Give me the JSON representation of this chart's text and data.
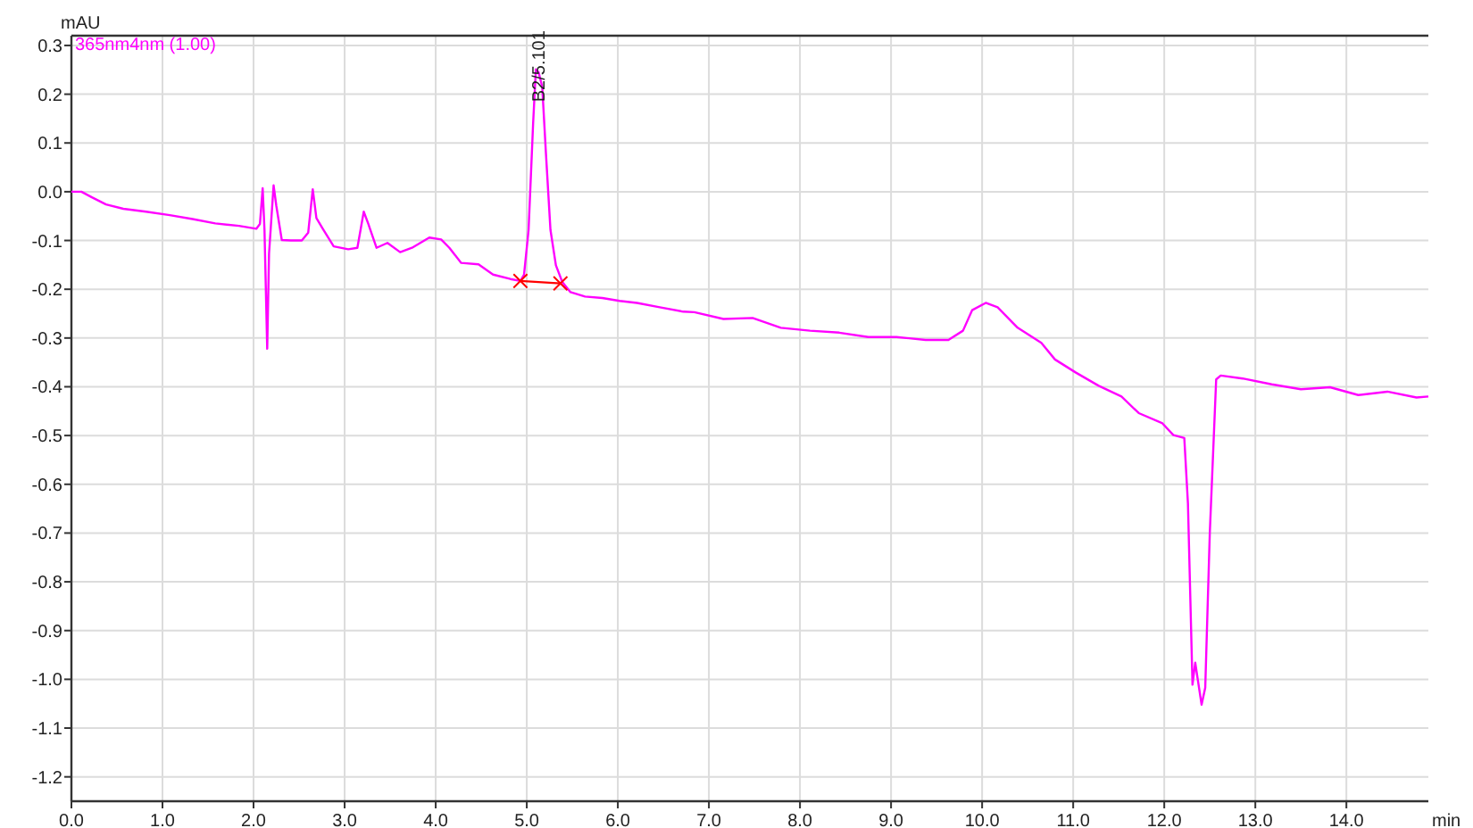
{
  "chart_data": {
    "type": "line",
    "xlabel": "min",
    "ylabel": "mAU",
    "xlim": [
      0,
      14.9
    ],
    "ylim": [
      -1.25,
      0.32
    ],
    "xticks": [
      {
        "value": 0,
        "label": "0.0"
      },
      {
        "value": 1,
        "label": "1.0"
      },
      {
        "value": 2,
        "label": "2.0"
      },
      {
        "value": 3,
        "label": "3.0"
      },
      {
        "value": 4,
        "label": "4.0"
      },
      {
        "value": 5,
        "label": "5.0"
      },
      {
        "value": 6,
        "label": "6.0"
      },
      {
        "value": 7,
        "label": "7.0"
      },
      {
        "value": 8,
        "label": "8.0"
      },
      {
        "value": 9,
        "label": "9.0"
      },
      {
        "value": 10,
        "label": "10.0"
      },
      {
        "value": 11,
        "label": "11.0"
      },
      {
        "value": 12,
        "label": "12.0"
      },
      {
        "value": 13,
        "label": "13.0"
      },
      {
        "value": 14,
        "label": "14.0"
      }
    ],
    "yticks": [
      0.3,
      0.2,
      0.1,
      {
        "value": 0,
        "label": "0.0"
      },
      -0.1,
      -0.2,
      -0.3,
      -0.4,
      -0.5,
      -0.6,
      -0.7,
      -0.8,
      -0.9,
      {
        "value": -1,
        "label": "-1.0"
      },
      -1.1,
      -1.2
    ],
    "grid": true,
    "legend": "top left",
    "annotations": [
      {
        "text": "B2/5.101",
        "x": 5.101,
        "y": 0.25
      }
    ],
    "series": [
      {
        "name": "365nm4nm (1.00)",
        "color": "#ff00ff",
        "x": [
          0,
          0.11,
          0.22,
          0.38,
          0.57,
          0.82,
          1.08,
          1.33,
          1.58,
          1.84,
          2.03,
          2.07,
          2.1,
          2.12,
          2.15,
          2.17,
          2.22,
          2.25,
          2.31,
          2.41,
          2.53,
          2.6,
          2.65,
          2.69,
          2.76,
          2.88,
          3.04,
          3.14,
          3.21,
          3.26,
          3.35,
          3.47,
          3.61,
          3.74,
          3.93,
          4.06,
          4.15,
          4.28,
          4.47,
          4.63,
          4.82,
          4.93,
          4.97,
          5.02,
          5.07,
          5.1,
          5.13,
          5.17,
          5.21,
          5.26,
          5.32,
          5.39,
          5.48,
          5.64,
          5.83,
          6.02,
          6.21,
          6.46,
          6.72,
          6.84,
          7.16,
          7.48,
          7.79,
          8.11,
          8.43,
          8.75,
          9.06,
          9.38,
          9.63,
          9.79,
          9.89,
          10.04,
          10.17,
          10.39,
          10.65,
          10.8,
          11.03,
          11.28,
          11.53,
          11.72,
          11.98,
          12.1,
          12.22,
          12.26,
          12.31,
          12.34,
          12.41,
          12.45,
          12.5,
          12.57,
          12.62,
          12.86,
          13.18,
          13.5,
          13.82,
          14.13,
          14.45,
          14.77,
          14.9
        ],
        "values": [
          0,
          0,
          -0.011,
          -0.026,
          -0.035,
          -0.041,
          -0.048,
          -0.056,
          -0.065,
          -0.07,
          -0.076,
          -0.066,
          0.007,
          -0.078,
          -0.322,
          -0.127,
          0.013,
          -0.029,
          -0.099,
          -0.1,
          -0.1,
          -0.084,
          0.005,
          -0.054,
          -0.076,
          -0.112,
          -0.118,
          -0.115,
          -0.041,
          -0.066,
          -0.115,
          -0.105,
          -0.124,
          -0.115,
          -0.094,
          -0.098,
          -0.115,
          -0.146,
          -0.149,
          -0.17,
          -0.179,
          -0.183,
          -0.17,
          -0.078,
          0.141,
          0.251,
          0.245,
          0.215,
          0.08,
          -0.078,
          -0.151,
          -0.185,
          -0.206,
          -0.215,
          -0.218,
          -0.224,
          -0.228,
          -0.237,
          -0.246,
          -0.247,
          -0.261,
          -0.259,
          -0.279,
          -0.285,
          -0.289,
          -0.298,
          -0.298,
          -0.304,
          -0.304,
          -0.285,
          -0.243,
          -0.228,
          -0.237,
          -0.279,
          -0.31,
          -0.344,
          -0.371,
          -0.398,
          -0.42,
          -0.454,
          -0.475,
          -0.499,
          -0.505,
          -0.639,
          -1.011,
          -0.966,
          -1.052,
          -1.017,
          -0.7,
          -0.385,
          -0.377,
          -0.383,
          -0.395,
          -0.405,
          -0.401,
          -0.417,
          -0.41,
          -0.422,
          -0.42
        ]
      },
      {
        "color": "#ff0000",
        "marker": "cross",
        "x": [
          4.93,
          5.37
        ],
        "values": [
          -0.183,
          -0.188
        ]
      }
    ]
  }
}
